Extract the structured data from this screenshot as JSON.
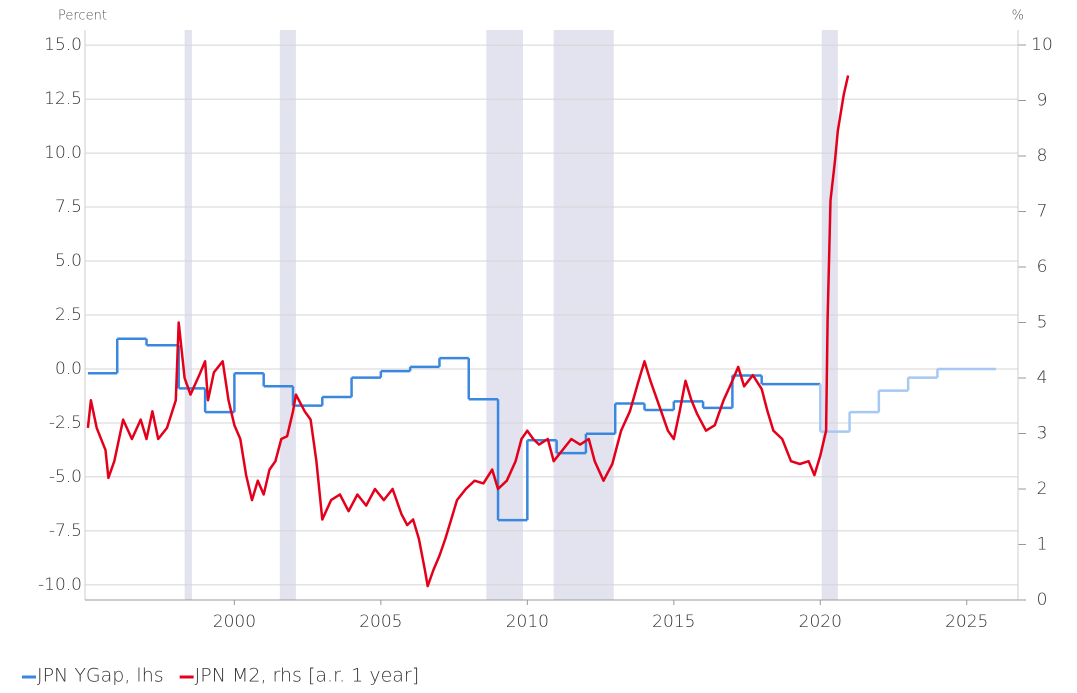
{
  "chart_data": {
    "type": "line",
    "y_label": "Percent",
    "y2_label": "%",
    "xlim": [
      1994.9,
      2026.75
    ],
    "xticks": [
      2000,
      2005,
      2010,
      2015,
      2020,
      2025
    ],
    "ylim": [
      -10.7,
      15.7
    ],
    "yticks": [
      {
        "value": 15,
        "label": "15.0"
      },
      12.5,
      {
        "value": 10,
        "label": "10.0"
      },
      7.5,
      {
        "value": 5,
        "label": "5.0"
      },
      2.5,
      {
        "value": 0,
        "label": "0.0"
      },
      -2.5,
      {
        "value": -5,
        "label": "-5.0"
      },
      -7.5,
      {
        "value": -10,
        "label": "-10.0"
      }
    ],
    "y2lim": [
      0,
      10.27
    ],
    "y2ticks": [
      0,
      1,
      2,
      3,
      4,
      5,
      6,
      7,
      8,
      9,
      10
    ],
    "grid": true,
    "legend": "bottom-left",
    "shade_color": "#e3e3f0",
    "shaded_periods": [
      {
        "start": 1998.3,
        "end": 1998.55
      },
      {
        "start": 2001.55,
        "end": 2002.1
      },
      {
        "start": 2008.6,
        "end": 2009.85
      },
      {
        "start": 2010.9,
        "end": 2012.95
      },
      {
        "start": 2020.05,
        "end": 2020.6
      }
    ],
    "series": [
      {
        "name": "JPN YGap, lhs",
        "color": "#3a87e0",
        "forecast_color": "#a6c8f2",
        "forecast_start": 2020,
        "step": true,
        "x": [
          1995,
          1996,
          1997,
          1998.1,
          1999,
          2000,
          2001,
          2002,
          2003,
          2004,
          2005,
          2006,
          2007,
          2008,
          2009,
          2010,
          2011,
          2012,
          2013,
          2014,
          2015,
          2016,
          2017,
          2018,
          2020,
          2021,
          2022,
          2023,
          2024,
          2026
        ],
        "values": [
          -0.2,
          1.4,
          1.1,
          -0.9,
          -2.0,
          -0.2,
          -0.8,
          -1.7,
          -1.3,
          -0.4,
          -0.1,
          0.1,
          0.5,
          -1.4,
          -7.0,
          -3.3,
          -3.9,
          -3.0,
          -1.6,
          -1.9,
          -1.5,
          -1.8,
          -0.3,
          -0.7,
          -2.9,
          -2.0,
          -1.0,
          -0.4,
          0.0,
          0.0
        ]
      },
      {
        "name": "JPN M2, rhs [a.r. 1 year]",
        "color": "#e4001b",
        "axis": "y2",
        "x": [
          1995.0,
          1995.1,
          1995.3,
          1995.6,
          1995.7,
          1995.9,
          1996.2,
          1996.5,
          1996.8,
          1997.0,
          1997.2,
          1997.4,
          1997.7,
          1998.0,
          1998.1,
          1998.3,
          1998.5,
          1998.8,
          1999.0,
          1999.1,
          1999.3,
          1999.6,
          1999.8,
          2000.0,
          2000.2,
          2000.4,
          2000.6,
          2000.8,
          2001.0,
          2001.2,
          2001.4,
          2001.6,
          2001.8,
          2002.0,
          2002.1,
          2002.4,
          2002.6,
          2002.8,
          2003.0,
          2003.3,
          2003.6,
          2003.9,
          2004.2,
          2004.5,
          2004.8,
          2005.1,
          2005.4,
          2005.7,
          2005.9,
          2006.1,
          2006.3,
          2006.5,
          2006.6,
          2006.8,
          2007.0,
          2007.2,
          2007.4,
          2007.6,
          2007.9,
          2008.2,
          2008.5,
          2008.8,
          2009.0,
          2009.3,
          2009.6,
          2009.8,
          2010.0,
          2010.2,
          2010.4,
          2010.7,
          2010.9,
          2011.2,
          2011.5,
          2011.8,
          2012.1,
          2012.3,
          2012.6,
          2012.9,
          2013.2,
          2013.5,
          2013.8,
          2014.0,
          2014.2,
          2014.5,
          2014.8,
          2015.0,
          2015.2,
          2015.4,
          2015.6,
          2015.8,
          2016.1,
          2016.4,
          2016.7,
          2017.0,
          2017.2,
          2017.4,
          2017.7,
          2018.0,
          2018.2,
          2018.4,
          2018.7,
          2019.0,
          2019.3,
          2019.6,
          2019.8,
          2020.0,
          2020.2,
          2020.25,
          2020.35,
          2020.5,
          2020.6,
          2020.8,
          2020.95
        ],
        "values": [
          3.1,
          3.6,
          3.1,
          2.7,
          2.2,
          2.5,
          3.25,
          2.9,
          3.25,
          2.9,
          3.4,
          2.9,
          3.1,
          3.6,
          5.0,
          4.0,
          3.7,
          4.05,
          4.3,
          3.6,
          4.1,
          4.3,
          3.6,
          3.15,
          2.9,
          2.25,
          1.8,
          2.15,
          1.9,
          2.35,
          2.5,
          2.9,
          2.95,
          3.4,
          3.7,
          3.4,
          3.25,
          2.5,
          1.45,
          1.8,
          1.9,
          1.6,
          1.9,
          1.7,
          2.0,
          1.8,
          2.0,
          1.55,
          1.35,
          1.45,
          1.1,
          0.55,
          0.25,
          0.55,
          0.8,
          1.1,
          1.45,
          1.8,
          2.0,
          2.15,
          2.1,
          2.35,
          2.0,
          2.15,
          2.5,
          2.9,
          3.05,
          2.9,
          2.8,
          2.9,
          2.5,
          2.7,
          2.9,
          2.8,
          2.9,
          2.5,
          2.15,
          2.45,
          3.05,
          3.4,
          3.95,
          4.3,
          3.95,
          3.5,
          3.05,
          2.9,
          3.4,
          3.95,
          3.6,
          3.35,
          3.05,
          3.15,
          3.6,
          3.95,
          4.2,
          3.85,
          4.05,
          3.8,
          3.4,
          3.05,
          2.9,
          2.5,
          2.45,
          2.5,
          2.25,
          2.6,
          3.05,
          5.05,
          7.2,
          7.9,
          8.45,
          9.1,
          9.45
        ]
      }
    ]
  }
}
